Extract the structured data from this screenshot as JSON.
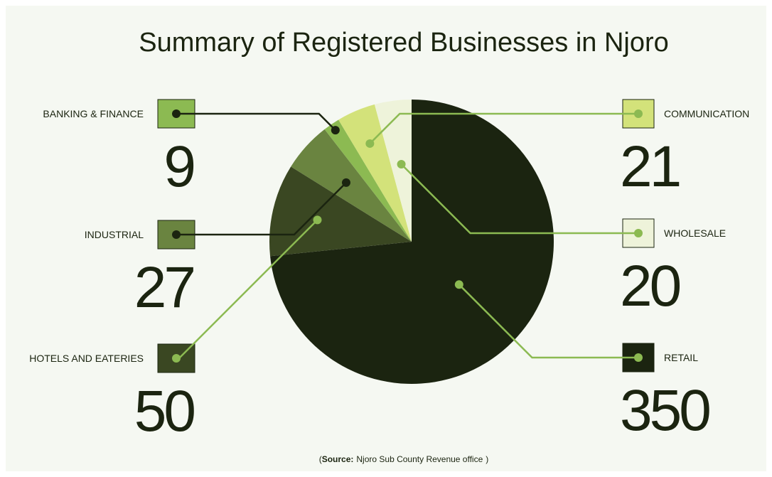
{
  "chart_data": {
    "type": "pie",
    "title": "Summary of Registered Businesses in Njoro",
    "categories": [
      "RETAIL",
      "HOTELS AND EATERIES",
      "INDUSTRIAL",
      "BANKING & FINANCE",
      "COMMUNICATION",
      "WHOLESALE"
    ],
    "values": [
      350,
      50,
      27,
      9,
      21,
      20
    ],
    "colors": [
      "#1b2410",
      "#3a4722",
      "#6a8440",
      "#8cba52",
      "#d3e27a",
      "#eef3da"
    ],
    "source_open": "(",
    "source_label": "Source:",
    "source": "Njoro Sub County Revenue office",
    "source_close": ")"
  }
}
